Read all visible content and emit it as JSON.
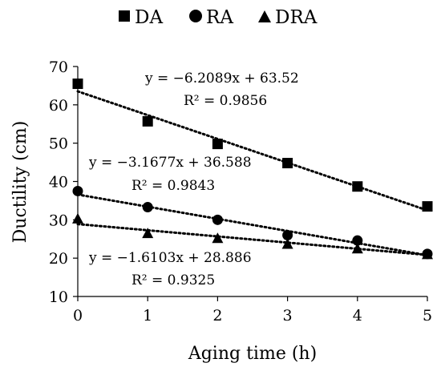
{
  "chart_data": {
    "type": "scatter",
    "xlabel": "Aging time (h)",
    "ylabel": "Ductility (cm)",
    "xlim": [
      0,
      5
    ],
    "ylim": [
      10,
      70
    ],
    "x_ticks": [
      "0",
      "1",
      "2",
      "3",
      "4",
      "5"
    ],
    "y_ticks": [
      "10",
      "20",
      "30",
      "40",
      "50",
      "60",
      "70"
    ],
    "grid": false,
    "legend_position": "top-center",
    "x": [
      0,
      1,
      2,
      3,
      4,
      5
    ],
    "series": [
      {
        "name": "DA",
        "marker": "square",
        "values": [
          65.5,
          55.7,
          49.8,
          44.8,
          38.7,
          33.5
        ],
        "trend": {
          "slope": -6.2089,
          "intercept": 63.52
        },
        "equation": "y = −6.2089x + 63.52",
        "r2": "R² = 0.9856"
      },
      {
        "name": "RA",
        "marker": "circle",
        "values": [
          37.5,
          33.3,
          30.0,
          26.0,
          24.6,
          21.1
        ],
        "trend": {
          "slope": -3.1677,
          "intercept": 36.588
        },
        "equation": "y = −3.1677x + 36.588",
        "r2": "R² = 0.9843"
      },
      {
        "name": "DRA",
        "marker": "triangle",
        "values": [
          30.3,
          26.5,
          25.2,
          23.7,
          22.5,
          21.0
        ],
        "trend": {
          "slope": -1.6103,
          "intercept": 28.886
        },
        "equation": "y = −1.6103x + 28.886",
        "r2": "R² = 0.9325"
      }
    ],
    "colors": {
      "marker": "#000000",
      "trendline": "#000000",
      "axis": "#000000"
    }
  }
}
